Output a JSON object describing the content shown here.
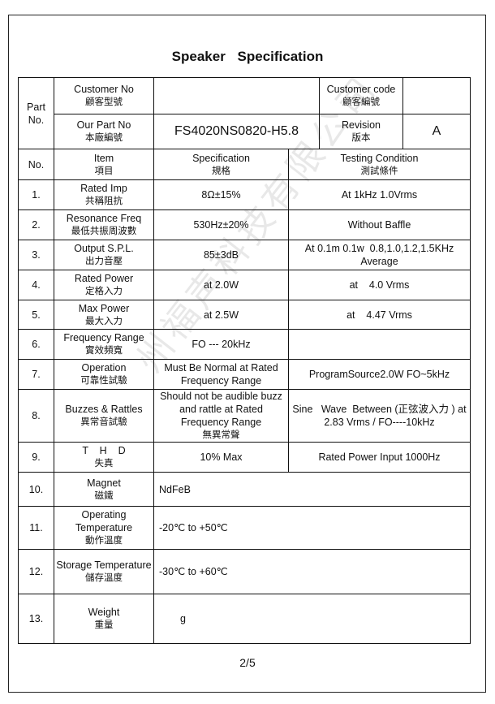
{
  "title": "Speaker Specification",
  "header": {
    "part_no": "Part No.",
    "customer_no_en": "Customer No",
    "customer_no_cn": "顧客型號",
    "customer_no_value": "",
    "customer_code_en": "Customer code",
    "customer_code_cn": "顧客編號",
    "customer_code_value": "",
    "our_part_no_en": "Our Part No",
    "our_part_no_cn": "本廠編號",
    "our_part_no_value": "FS4020NS0820-H5.8",
    "revision_en": "Revision",
    "revision_cn": "版本",
    "revision_value": "A"
  },
  "columns": {
    "no": "No.",
    "item_en": "Item",
    "item_cn": "項目",
    "spec_en": "Specification",
    "spec_cn": "規格",
    "test_en": "Testing Condition",
    "test_cn": "測試條件"
  },
  "rows": [
    {
      "no": "1.",
      "item_en": "Rated Imp",
      "item_cn": "共稱阻抗",
      "spec": "8Ω±15%",
      "test": "At 1kHz 1.0Vrms"
    },
    {
      "no": "2.",
      "item_en": "Resonance Freq",
      "item_cn": "最低共振周波數",
      "spec": "530Hz±20%",
      "test": "Without Baffle"
    },
    {
      "no": "3.",
      "item_en": "Output S.P.L.",
      "item_cn": "出力音壓",
      "spec": "85±3dB",
      "test": "At 0.1m 0.1w  0.8,1.0,1.2,1.5KHz Average"
    },
    {
      "no": "4.",
      "item_en": "Rated Power",
      "item_cn": "定格入力",
      "spec": "at    2.0W",
      "test": "at    4.0 Vrms"
    },
    {
      "no": "5.",
      "item_en": "Max Power",
      "item_cn": "最大入力",
      "spec": "at    2.5W",
      "test": "at    4.47 Vrms"
    },
    {
      "no": "6.",
      "item_en": "Frequency Range",
      "item_cn": "實效頻寬",
      "spec": "FO --- 20kHz",
      "test": ""
    },
    {
      "no": "7.",
      "item_en": "Operation",
      "item_cn": "可靠性試驗",
      "spec": "Must Be Normal at Rated Frequency Range",
      "test": "ProgramSource2.0W FO~5kHz"
    },
    {
      "no": "8.",
      "item_en": "Buzzes & Rattles",
      "item_cn": "異常音試驗",
      "spec": "Should not be audible buzz and rattle at Rated Frequency Range",
      "spec_cn": "無異常聲",
      "test": "Sine   Wave  Between (正弦波入力 ) at  2.83 Vrms / FO----10kHz"
    },
    {
      "no": "9.",
      "item_en": "T    H    D",
      "item_cn": "失真",
      "spec": "10% Max",
      "test": "Rated Power Input 1000Hz"
    },
    {
      "no": "10.",
      "item_en": "Magnet",
      "item_cn": "磁鐵",
      "spec": "NdFeB"
    },
    {
      "no": "11.",
      "item_en": "Operating Temperature",
      "item_cn": "動作溫度",
      "spec": "-20℃ to +50℃"
    },
    {
      "no": "12.",
      "item_en": "Storage Temperature",
      "item_cn": "儲存溫度",
      "spec": "-30℃ to +60℃"
    },
    {
      "no": "13.",
      "item_en": "Weight",
      "item_cn": "重量",
      "spec": "g"
    }
  ],
  "watermark": "州福声科技有限公司",
  "footer": {
    "page": "2/5"
  }
}
